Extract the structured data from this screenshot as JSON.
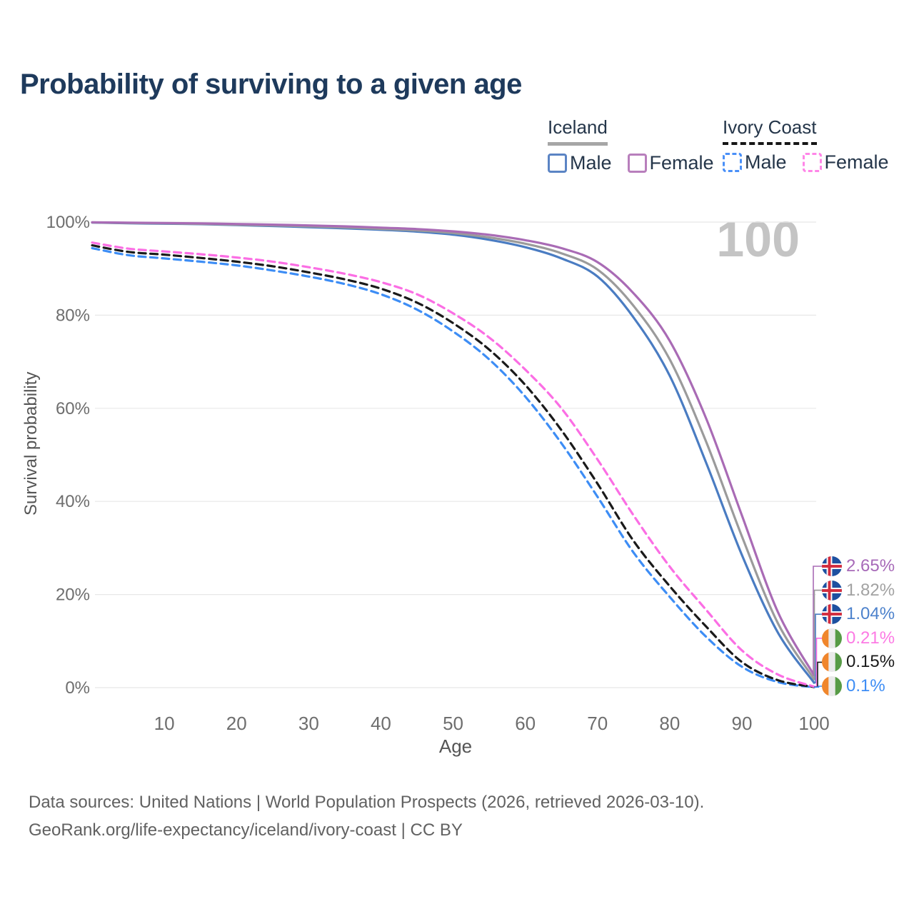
{
  "header": {
    "title": "Probability of surviving to a given age"
  },
  "legend": {
    "iceland": {
      "title": "Iceland",
      "male": "Male",
      "female": "Female"
    },
    "ivory_coast": {
      "title": "Ivory Coast",
      "male": "Male",
      "female": "Female"
    }
  },
  "plot": {
    "watermark": "100",
    "x_title": "Age",
    "y_title": "Survival probability"
  },
  "footer": {
    "line1": "Data sources: United Nations | World Population Prospects (2026, retrieved 2026-03-10).",
    "line2": "GeoRank.org/life-expectancy/iceland/ivory-coast | CC BY"
  },
  "end_labels": [
    {
      "series": "if",
      "flag": "iceland",
      "label": "2.65%",
      "text_color": "#a76ab8"
    },
    {
      "series": "it",
      "flag": "iceland",
      "label": "1.82%",
      "text_color": "#a2a2a2"
    },
    {
      "series": "im",
      "flag": "iceland",
      "label": "1.04%",
      "text_color": "#4d82cc"
    },
    {
      "series": "cf",
      "flag": "ivory-coast",
      "label": "0.21%",
      "text_color": "#fc7ae4"
    },
    {
      "series": "ct",
      "flag": "ivory-coast",
      "label": "0.15%",
      "text_color": "#1a1a1a"
    },
    {
      "series": "cm",
      "flag": "ivory-coast",
      "label": "0.1%",
      "text_color": "#3d8df5"
    }
  ],
  "chart_data": {
    "type": "line",
    "title": "Probability of surviving to a given age",
    "xlabel": "Age",
    "ylabel": "Survival probability",
    "xlim": [
      0,
      100
    ],
    "ylim": [
      0,
      100
    ],
    "grid": true,
    "legend_position": "top-right",
    "hover_age": 100,
    "x_ticks": [
      10,
      20,
      30,
      40,
      50,
      60,
      70,
      80,
      90,
      100
    ],
    "y_ticks": [
      {
        "value": 0,
        "label": "0%"
      },
      {
        "value": 20,
        "label": "20%"
      },
      {
        "value": 40,
        "label": "40%"
      },
      {
        "value": 60,
        "label": "60%"
      },
      {
        "value": 80,
        "label": "80%"
      },
      {
        "value": 100,
        "label": "100%"
      }
    ],
    "ages": [
      0,
      5,
      10,
      15,
      20,
      25,
      30,
      35,
      40,
      45,
      50,
      55,
      60,
      65,
      70,
      75,
      80,
      85,
      90,
      95,
      100
    ],
    "series": [
      {
        "id": "im",
        "name": "Iceland Male",
        "color": "#4a7cc2",
        "dash": false,
        "end_label": "1.04%",
        "values": [
          99.9,
          99.75,
          99.65,
          99.55,
          99.35,
          99.15,
          98.9,
          98.65,
          98.35,
          97.95,
          97.3,
          96.2,
          94.6,
          92.2,
          88.3,
          79.5,
          67.0,
          48.5,
          28.5,
          11.8,
          1.04
        ]
      },
      {
        "id": "it",
        "name": "Iceland Total",
        "color": "#9b9b9b",
        "dash": false,
        "end_label": "1.82%",
        "values": [
          99.92,
          99.8,
          99.72,
          99.62,
          99.45,
          99.28,
          99.08,
          98.85,
          98.55,
          98.2,
          97.65,
          96.7,
          95.35,
          93.3,
          89.8,
          82.0,
          70.5,
          53.0,
          32.5,
          13.8,
          1.82
        ]
      },
      {
        "id": "if",
        "name": "Iceland Female",
        "color": "#a96bb5",
        "dash": false,
        "end_label": "2.65%",
        "values": [
          99.95,
          99.87,
          99.8,
          99.72,
          99.58,
          99.45,
          99.28,
          99.08,
          98.8,
          98.5,
          98.0,
          97.25,
          96.1,
          94.4,
          91.4,
          84.7,
          74.5,
          58.0,
          37.0,
          16.2,
          2.65
        ]
      },
      {
        "id": "cm",
        "name": "Ivory Coast Male",
        "color": "#3d8df5",
        "dash": true,
        "end_label": "0.1%",
        "values": [
          94.4,
          92.9,
          92.2,
          91.5,
          90.7,
          89.6,
          88.3,
          86.7,
          84.5,
          81.2,
          76.5,
          70.5,
          62.5,
          52.5,
          41.0,
          29.0,
          19.5,
          11.0,
          4.5,
          1.2,
          0.1
        ]
      },
      {
        "id": "ct",
        "name": "Ivory Coast Total",
        "color": "#1a1a1a",
        "dash": true,
        "end_label": "0.15%",
        "values": [
          95.0,
          93.6,
          93.0,
          92.3,
          91.5,
          90.5,
          89.2,
          87.7,
          85.7,
          82.7,
          78.3,
          72.6,
          65.0,
          55.3,
          43.8,
          31.5,
          21.8,
          13.2,
          5.5,
          1.6,
          0.15
        ]
      },
      {
        "id": "cf",
        "name": "Ivory Coast Female",
        "color": "#fb6ee4",
        "dash": true,
        "end_label": "0.21%",
        "values": [
          95.6,
          94.3,
          93.7,
          93.1,
          92.4,
          91.5,
          90.3,
          88.9,
          87.1,
          84.5,
          80.4,
          75.2,
          68.3,
          60.0,
          49.0,
          37.0,
          26.0,
          16.8,
          8.0,
          2.8,
          0.21
        ]
      }
    ]
  }
}
